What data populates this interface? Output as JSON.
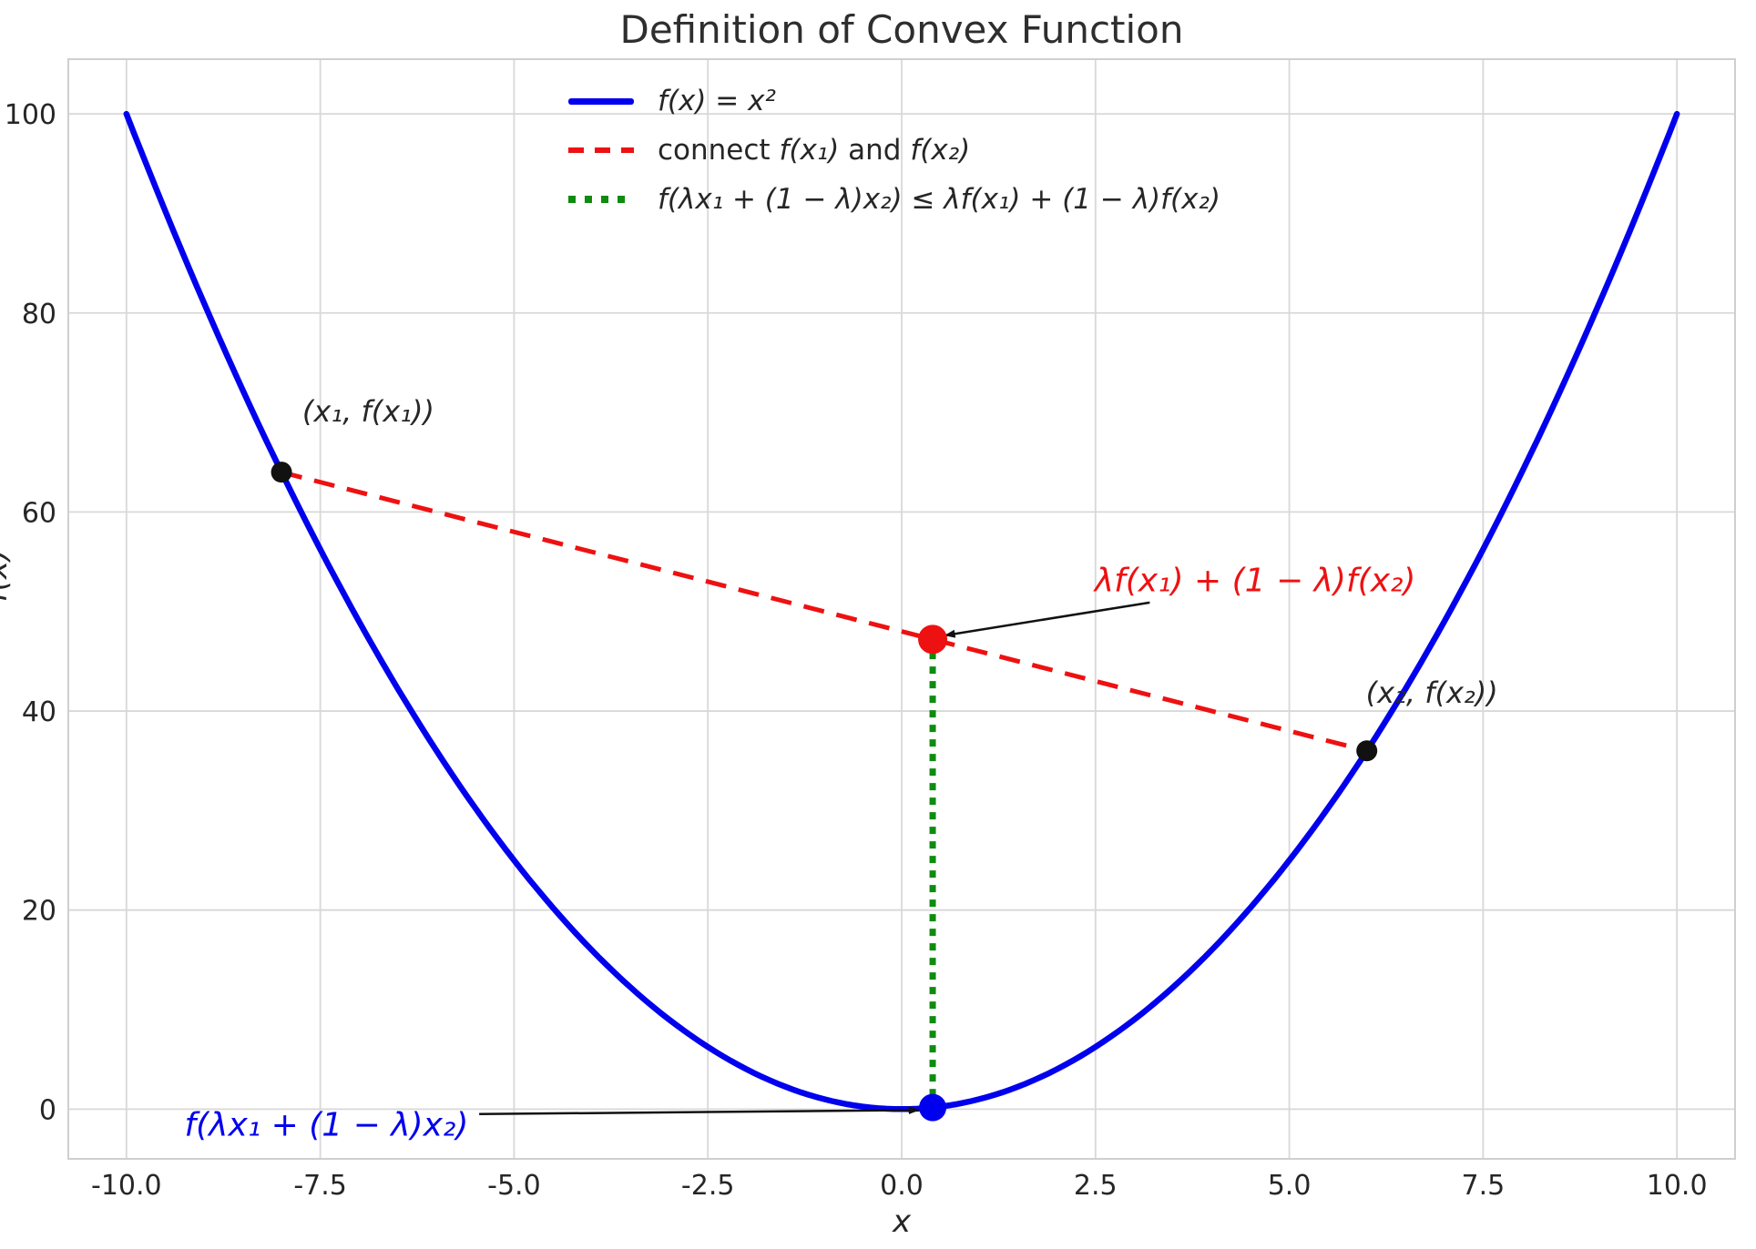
{
  "figure": {
    "title": "Definition of Convex Function",
    "xlabel": "x",
    "ylabel": "f(x)"
  },
  "chart_data": {
    "type": "line",
    "title": "Definition of Convex Function",
    "xlabel": "x",
    "ylabel": "f(x)",
    "xlim": [
      -10.75,
      10.75
    ],
    "ylim": [
      -5,
      105.5
    ],
    "x_ticks": [
      -10.0,
      -7.5,
      -5.0,
      -2.5,
      0.0,
      2.5,
      5.0,
      7.5,
      10.0
    ],
    "x_tick_labels": [
      "-10.0",
      "-7.5",
      "-5.0",
      "-2.5",
      "0.0",
      "2.5",
      "5.0",
      "7.5",
      "10.0"
    ],
    "y_ticks": [
      0,
      20,
      40,
      60,
      80,
      100
    ],
    "y_tick_labels": [
      "0",
      "20",
      "40",
      "60",
      "80",
      "100"
    ],
    "grid": true,
    "grid_color": "#d8d8d8",
    "spine_color": "#cfcfcf",
    "legend": {
      "frame": false,
      "position": "upper center-left",
      "items": [
        {
          "style": "solid",
          "color": "#0000ee",
          "segments": [
            {
              "t": "f(x) = x²",
              "i": true
            }
          ]
        },
        {
          "style": "dashed",
          "color": "#ee1111",
          "segments": [
            {
              "t": "connect ",
              "i": false
            },
            {
              "t": "f(x₁)",
              "i": true
            },
            {
              "t": " and ",
              "i": false
            },
            {
              "t": "f(x₂)",
              "i": true
            }
          ]
        },
        {
          "style": "dotted",
          "color": "#0f8c0f",
          "segments": [
            {
              "t": "f(λx₁ + (1 − λ)x₂) ≤ λf(x₁) + (1 − λ)f(x₂)",
              "i": true
            }
          ]
        }
      ]
    },
    "series": [
      {
        "name": "parabola",
        "label": "f(x) = x²",
        "style": "solid",
        "color": "#0000ee",
        "width": 6.5,
        "fn": "x^2",
        "x_min": -10,
        "x_max": 10
      },
      {
        "name": "chord",
        "label": "connect f(x₁) and f(x₂)",
        "style": "dashed",
        "color": "#ee1111",
        "width": 5,
        "points": [
          [
            -8,
            64
          ],
          [
            6,
            36
          ]
        ]
      },
      {
        "name": "convexity-segment",
        "label": "f(λx₁ + (1 − λ)x₂) ≤ λf(x₁) + (1 − λ)f(x₂)",
        "style": "dotted",
        "color": "#0f8c0f",
        "width": 7,
        "points": [
          [
            0.4,
            0.16
          ],
          [
            0.4,
            47.2
          ]
        ]
      }
    ],
    "points": [
      {
        "name": "point-x1",
        "xy": [
          -8,
          64
        ],
        "color": "#111111",
        "r": 11.5
      },
      {
        "name": "point-x2",
        "xy": [
          6,
          36
        ],
        "color": "#111111",
        "r": 11.5
      },
      {
        "name": "point-chord",
        "xy": [
          0.4,
          47.2
        ],
        "color": "#ee1111",
        "r": 16
      },
      {
        "name": "point-curve",
        "xy": [
          0.4,
          0.16
        ],
        "color": "#0000ee",
        "r": 15
      }
    ],
    "points_of_interest": {
      "x1": -8,
      "f_x1": 64,
      "x2": 6,
      "f_x2": 36,
      "lambda": 0.4,
      "combo_x": 0.4,
      "f_combo": 0.16,
      "chord_value": 47.2
    },
    "annotations": [
      {
        "name": "x1-label",
        "text": "(x₁, f(x₁))",
        "color": "#262626",
        "xy": [
          -6.88,
          70.1
        ],
        "size": "small"
      },
      {
        "name": "x2-label",
        "text": "(x₂, f(x₂))",
        "color": "#262626",
        "xy": [
          6.84,
          41.8
        ],
        "size": "small"
      },
      {
        "name": "chord-value-label",
        "text": "λf(x₁) + (1 − λ)f(x₂)",
        "color": "#ee1111",
        "xy": [
          4.56,
          53.1
        ],
        "size": "big"
      },
      {
        "name": "curve-value-label",
        "text": "f(λx₁ + (1 − λ)x₂)",
        "color": "#0000ee",
        "xy": [
          -7.42,
          -1.65
        ],
        "size": "big"
      }
    ],
    "arrows": [
      {
        "name": "arrow-to-chord-point",
        "from": [
          3.2,
          50.9
        ],
        "to": [
          0.56,
          47.6
        ]
      },
      {
        "name": "arrow-to-curve-point",
        "from": [
          -5.45,
          -0.5
        ],
        "to": [
          0.22,
          -0.1
        ]
      }
    ]
  }
}
